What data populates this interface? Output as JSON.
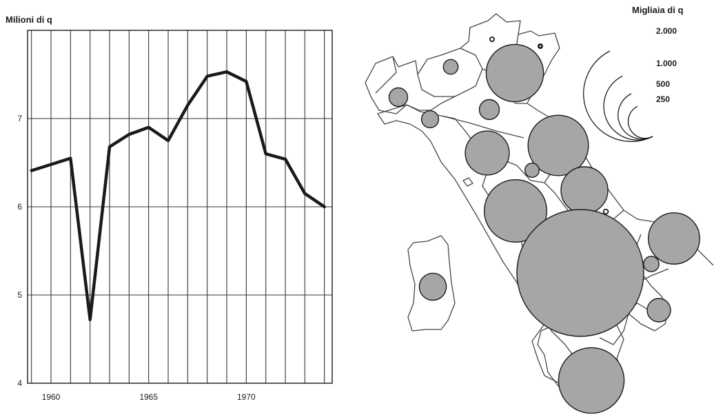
{
  "colors": {
    "line": "#1a1a1a",
    "grid": "#333333",
    "bubble_fill": "#a6a6a6",
    "bubble_stroke": "#1a1a1a",
    "region": "#444444"
  },
  "chart_data": [
    {
      "type": "line",
      "title": "",
      "xlabel": "",
      "ylabel": "Milioni di q",
      "xlim": [
        1958.8,
        1974.4
      ],
      "ylim": [
        4,
        8
      ],
      "xticks": [
        1960,
        1965,
        1970
      ],
      "yticks": [
        4,
        5,
        6,
        7
      ],
      "grid": true,
      "x": [
        1959,
        1960,
        1961,
        1962,
        1963,
        1964,
        1965,
        1966,
        1967,
        1968,
        1969,
        1970,
        1971,
        1972,
        1973,
        1974
      ],
      "y": [
        6.41,
        6.48,
        6.55,
        4.72,
        6.68,
        6.82,
        6.9,
        6.75,
        7.15,
        7.48,
        7.53,
        7.42,
        6.6,
        6.54,
        6.15,
        6.0
      ]
    },
    {
      "type": "proportional-symbol-map",
      "title": "",
      "legend_title": "Migliaia di q",
      "legend_placement": "top-right",
      "legend_values": [
        2000,
        1000,
        500,
        250
      ],
      "legend_labels": [
        "2.000",
        "1.000",
        "500",
        "250"
      ],
      "regions": [
        {
          "id": "valle-d-aosta",
          "value": 1
        },
        {
          "id": "piemonte",
          "value": 95
        },
        {
          "id": "lombardia",
          "value": 60
        },
        {
          "id": "trentino-alto-adige",
          "value": 5
        },
        {
          "id": "veneto",
          "value": 900
        },
        {
          "id": "friuli-venezia-giulia",
          "value": 5
        },
        {
          "id": "liguria",
          "value": 80
        },
        {
          "id": "emilia-romagna",
          "value": 110
        },
        {
          "id": "toscana",
          "value": 530
        },
        {
          "id": "marche",
          "value": 1000
        },
        {
          "id": "umbria",
          "value": 55
        },
        {
          "id": "lazio",
          "value": 1070
        },
        {
          "id": "abruzzo",
          "value": 600
        },
        {
          "id": "molise",
          "value": 6
        },
        {
          "id": "campania",
          "value": 4400
        },
        {
          "id": "puglia",
          "value": 720
        },
        {
          "id": "basilicata",
          "value": 65
        },
        {
          "id": "calabria",
          "value": 150
        },
        {
          "id": "sicilia",
          "value": 1180
        },
        {
          "id": "sardegna",
          "value": 200
        }
      ]
    }
  ]
}
